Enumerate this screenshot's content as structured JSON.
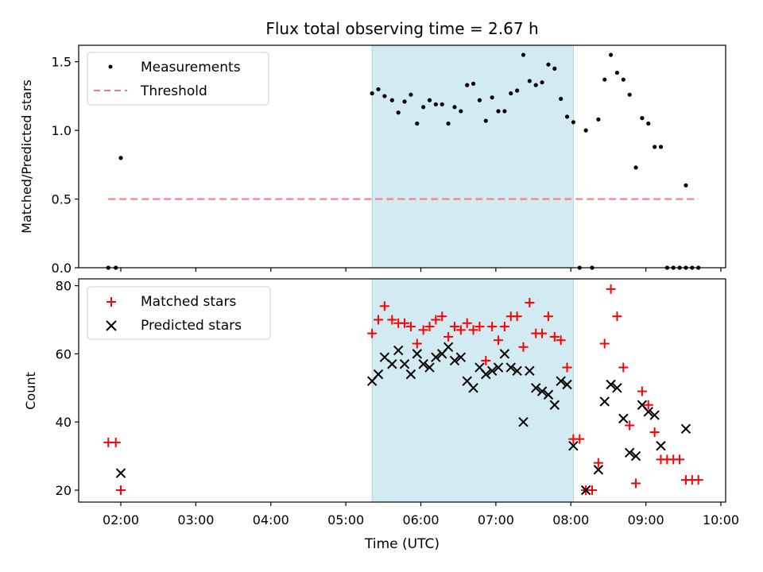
{
  "title": "Flux total observing time = 2.67 h",
  "xlabel": "Time (UTC)",
  "x_ticks": [
    "02:00",
    "03:00",
    "04:00",
    "05:00",
    "06:00",
    "07:00",
    "08:00",
    "09:00",
    "10:00"
  ],
  "shaded_interval": [
    "05:21",
    "08:02"
  ],
  "chart_data": [
    {
      "type": "scatter",
      "ylabel": "Matched/Predicted stars",
      "ylim": [
        0,
        1.62
      ],
      "y_ticks": [
        "0.0",
        "0.5",
        "1.0",
        "1.5"
      ],
      "legend_position": "top-left",
      "series": [
        {
          "name": "Measurements",
          "marker": "dot",
          "color": "#000000",
          "points": [
            [
              "01:50",
              0.0
            ],
            [
              "01:56",
              0.0
            ],
            [
              "02:00",
              0.8
            ],
            [
              "05:21",
              1.27
            ],
            [
              "05:26",
              1.3
            ],
            [
              "05:31",
              1.25
            ],
            [
              "05:37",
              1.22
            ],
            [
              "05:42",
              1.13
            ],
            [
              "05:47",
              1.21
            ],
            [
              "05:52",
              1.26
            ],
            [
              "05:57",
              1.05
            ],
            [
              "06:02",
              1.17
            ],
            [
              "06:07",
              1.22
            ],
            [
              "06:12",
              1.19
            ],
            [
              "06:17",
              1.19
            ],
            [
              "06:22",
              1.05
            ],
            [
              "06:27",
              1.17
            ],
            [
              "06:32",
              1.14
            ],
            [
              "06:37",
              1.33
            ],
            [
              "06:42",
              1.34
            ],
            [
              "06:47",
              1.22
            ],
            [
              "06:52",
              1.07
            ],
            [
              "06:57",
              1.24
            ],
            [
              "07:02",
              1.14
            ],
            [
              "07:07",
              1.14
            ],
            [
              "07:12",
              1.27
            ],
            [
              "07:17",
              1.29
            ],
            [
              "07:22",
              1.55
            ],
            [
              "07:27",
              1.36
            ],
            [
              "07:32",
              1.33
            ],
            [
              "07:37",
              1.35
            ],
            [
              "07:42",
              1.48
            ],
            [
              "07:47",
              1.45
            ],
            [
              "07:52",
              1.23
            ],
            [
              "07:57",
              1.1
            ],
            [
              "08:02",
              1.06
            ],
            [
              "08:07",
              0.0
            ],
            [
              "08:12",
              1.0
            ],
            [
              "08:17",
              0.0
            ],
            [
              "08:22",
              1.08
            ],
            [
              "08:27",
              1.37
            ],
            [
              "08:32",
              1.55
            ],
            [
              "08:37",
              1.42
            ],
            [
              "08:42",
              1.37
            ],
            [
              "08:47",
              1.26
            ],
            [
              "08:52",
              0.73
            ],
            [
              "08:57",
              1.09
            ],
            [
              "09:02",
              1.05
            ],
            [
              "09:07",
              0.88
            ],
            [
              "09:12",
              0.88
            ],
            [
              "09:17",
              0.0
            ],
            [
              "09:22",
              0.0
            ],
            [
              "09:27",
              0.0
            ],
            [
              "09:32",
              0.0
            ],
            [
              "09:32",
              0.6
            ],
            [
              "09:37",
              0.0
            ],
            [
              "09:42",
              0.0
            ]
          ]
        },
        {
          "name": "Threshold",
          "marker": "dashed-line",
          "color": "#ff7a7a",
          "points": [
            [
              "01:50",
              0.5
            ],
            [
              "09:42",
              0.5
            ]
          ]
        }
      ]
    },
    {
      "type": "scatter",
      "ylabel": "Count",
      "ylim": [
        16.5,
        82
      ],
      "y_ticks": [
        "20",
        "40",
        "60",
        "80"
      ],
      "legend_position": "top-left",
      "series": [
        {
          "name": "Matched stars",
          "marker": "plus",
          "color": "#ff0000",
          "points": [
            [
              "01:50",
              34
            ],
            [
              "01:56",
              34
            ],
            [
              "02:00",
              20
            ],
            [
              "05:21",
              66
            ],
            [
              "05:26",
              70
            ],
            [
              "05:31",
              74
            ],
            [
              "05:37",
              70
            ],
            [
              "05:42",
              69
            ],
            [
              "05:47",
              69
            ],
            [
              "05:52",
              68
            ],
            [
              "05:57",
              63
            ],
            [
              "06:02",
              67
            ],
            [
              "06:07",
              68
            ],
            [
              "06:12",
              70
            ],
            [
              "06:17",
              71
            ],
            [
              "06:22",
              65
            ],
            [
              "06:27",
              68
            ],
            [
              "06:32",
              67
            ],
            [
              "06:37",
              69
            ],
            [
              "06:42",
              67
            ],
            [
              "06:47",
              68
            ],
            [
              "06:52",
              58
            ],
            [
              "06:57",
              68
            ],
            [
              "07:02",
              64
            ],
            [
              "07:07",
              68
            ],
            [
              "07:12",
              71
            ],
            [
              "07:17",
              71
            ],
            [
              "07:22",
              62
            ],
            [
              "07:27",
              75
            ],
            [
              "07:32",
              66
            ],
            [
              "07:37",
              66
            ],
            [
              "07:42",
              71
            ],
            [
              "07:47",
              65
            ],
            [
              "07:52",
              64
            ],
            [
              "07:57",
              56
            ],
            [
              "08:02",
              35
            ],
            [
              "08:07",
              35
            ],
            [
              "08:12",
              20
            ],
            [
              "08:17",
              20
            ],
            [
              "08:22",
              28
            ],
            [
              "08:27",
              63
            ],
            [
              "08:32",
              79
            ],
            [
              "08:37",
              71
            ],
            [
              "08:42",
              56
            ],
            [
              "08:47",
              39
            ],
            [
              "08:52",
              22
            ],
            [
              "08:57",
              49
            ],
            [
              "09:02",
              45
            ],
            [
              "09:07",
              37
            ],
            [
              "09:12",
              29
            ],
            [
              "09:17",
              29
            ],
            [
              "09:22",
              29
            ],
            [
              "09:27",
              29
            ],
            [
              "09:32",
              23
            ],
            [
              "09:37",
              23
            ],
            [
              "09:42",
              23
            ]
          ]
        },
        {
          "name": "Predicted stars",
          "marker": "cross",
          "color": "#000000",
          "points": [
            [
              "02:00",
              25
            ],
            [
              "05:21",
              52
            ],
            [
              "05:26",
              54
            ],
            [
              "05:31",
              59
            ],
            [
              "05:37",
              57
            ],
            [
              "05:42",
              61
            ],
            [
              "05:47",
              57
            ],
            [
              "05:52",
              54
            ],
            [
              "05:57",
              60
            ],
            [
              "06:02",
              57
            ],
            [
              "06:07",
              56
            ],
            [
              "06:12",
              59
            ],
            [
              "06:17",
              60
            ],
            [
              "06:22",
              62
            ],
            [
              "06:27",
              58
            ],
            [
              "06:32",
              59
            ],
            [
              "06:37",
              52
            ],
            [
              "06:42",
              50
            ],
            [
              "06:47",
              56
            ],
            [
              "06:52",
              54
            ],
            [
              "06:57",
              55
            ],
            [
              "07:02",
              56
            ],
            [
              "07:07",
              60
            ],
            [
              "07:12",
              56
            ],
            [
              "07:17",
              55
            ],
            [
              "07:22",
              40
            ],
            [
              "07:27",
              55
            ],
            [
              "07:32",
              50
            ],
            [
              "07:37",
              49
            ],
            [
              "07:42",
              48
            ],
            [
              "07:47",
              45
            ],
            [
              "07:52",
              52
            ],
            [
              "07:57",
              51
            ],
            [
              "08:02",
              33
            ],
            [
              "08:12",
              20
            ],
            [
              "08:22",
              26
            ],
            [
              "08:27",
              46
            ],
            [
              "08:32",
              51
            ],
            [
              "08:37",
              50
            ],
            [
              "08:42",
              41
            ],
            [
              "08:47",
              31
            ],
            [
              "08:52",
              30
            ],
            [
              "08:57",
              45
            ],
            [
              "09:02",
              43
            ],
            [
              "09:07",
              42
            ],
            [
              "09:12",
              33
            ],
            [
              "09:32",
              38
            ]
          ]
        }
      ]
    }
  ]
}
